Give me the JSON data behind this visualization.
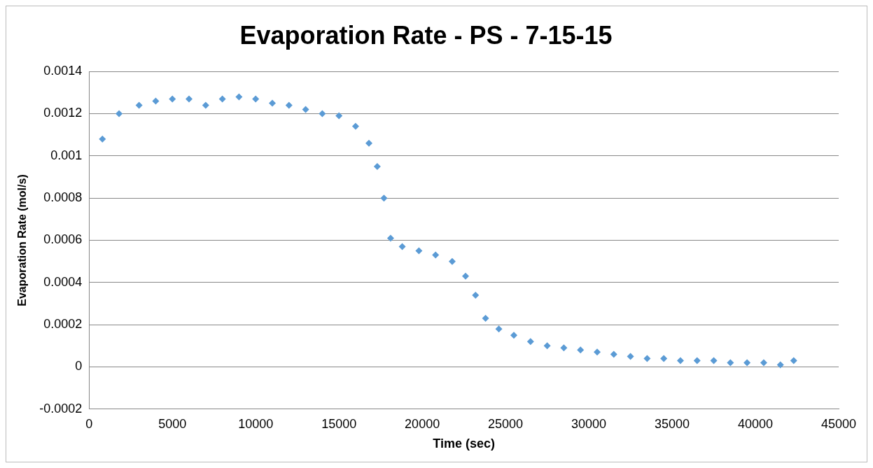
{
  "chart_data": {
    "type": "scatter",
    "title": "Evaporation Rate - PS - 7-15-15",
    "xlabel": "Time (sec)",
    "ylabel": "Evaporation Rate (mol/s)",
    "xlim": [
      0,
      45000
    ],
    "xticks": [
      0,
      5000,
      10000,
      15000,
      20000,
      25000,
      30000,
      35000,
      40000,
      45000
    ],
    "ylim": [
      -0.0002,
      0.0014
    ],
    "yticks": [
      -0.0002,
      0,
      0.0002,
      0.0004,
      0.0006,
      0.0008,
      0.001,
      0.0012,
      0.0014
    ],
    "grid": "y",
    "legend": false,
    "marker": "diamond",
    "series": [
      {
        "color": "#5b9bd5",
        "x": [
          800,
          1800,
          3000,
          4000,
          5000,
          6000,
          7000,
          8000,
          9000,
          10000,
          11000,
          12000,
          13000,
          14000,
          15000,
          16000,
          16800,
          17300,
          17700,
          18100,
          18800,
          19800,
          20800,
          21800,
          22600,
          23200,
          23800,
          24600,
          25500,
          26500,
          27500,
          28500,
          29500,
          30500,
          31500,
          32500,
          33500,
          34500,
          35500,
          36500,
          37500,
          38500,
          39500,
          40500,
          41500,
          42300
        ],
        "values": [
          0.00108,
          0.0012,
          0.00124,
          0.00126,
          0.00127,
          0.00127,
          0.00124,
          0.00127,
          0.00128,
          0.00127,
          0.00125,
          0.00124,
          0.00122,
          0.0012,
          0.00119,
          0.00114,
          0.00106,
          0.00095,
          0.0008,
          0.00061,
          0.00057,
          0.00055,
          0.00053,
          0.0005,
          0.00043,
          0.00034,
          0.00023,
          0.00018,
          0.00015,
          0.00012,
          0.0001,
          9e-05,
          8e-05,
          7e-05,
          6e-05,
          5e-05,
          4e-05,
          4e-05,
          3e-05,
          3e-05,
          3e-05,
          2e-05,
          2e-05,
          2e-05,
          1e-05,
          3e-05
        ]
      }
    ]
  }
}
